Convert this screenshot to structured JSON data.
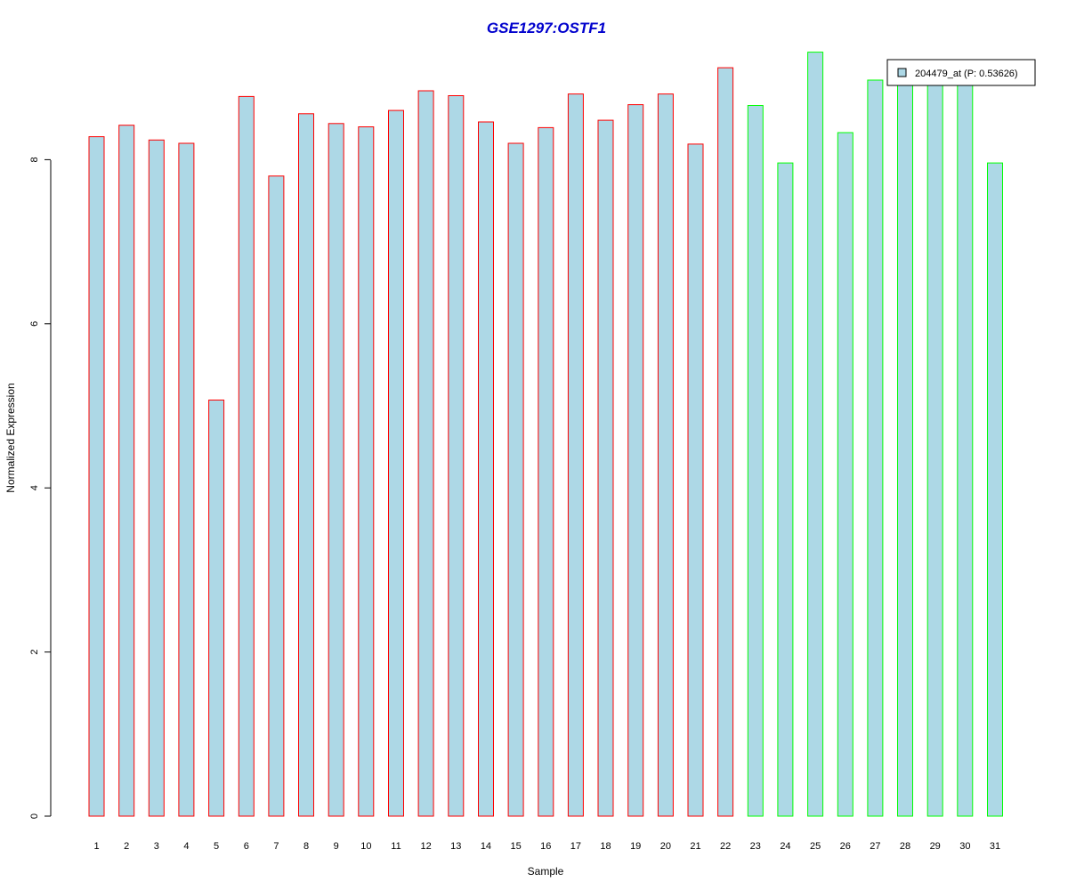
{
  "chart_data": {
    "type": "bar",
    "title": "GSE1297:OSTF1",
    "xlabel": "Sample",
    "ylabel": "Normalized Expression",
    "categories": [
      "1",
      "2",
      "3",
      "4",
      "5",
      "6",
      "7",
      "8",
      "9",
      "10",
      "11",
      "12",
      "13",
      "14",
      "15",
      "16",
      "17",
      "18",
      "19",
      "20",
      "21",
      "22",
      "23",
      "24",
      "25",
      "26",
      "27",
      "28",
      "29",
      "30",
      "31"
    ],
    "series": [
      {
        "name": "204479_at (P: 0.53626)",
        "values": [
          8.28,
          8.42,
          8.24,
          8.2,
          5.07,
          8.77,
          7.8,
          8.56,
          8.44,
          8.4,
          8.6,
          8.84,
          8.78,
          8.46,
          8.2,
          8.39,
          8.8,
          8.48,
          8.67,
          8.8,
          8.19,
          9.12,
          8.66,
          7.96,
          9.31,
          8.33,
          8.97,
          8.95,
          8.95,
          8.95,
          7.96
        ]
      }
    ],
    "groups": [
      "red",
      "red",
      "red",
      "red",
      "red",
      "red",
      "red",
      "red",
      "red",
      "red",
      "red",
      "red",
      "red",
      "red",
      "red",
      "red",
      "red",
      "red",
      "red",
      "red",
      "red",
      "red",
      "green",
      "green",
      "green",
      "green",
      "green",
      "green",
      "green",
      "green",
      "green"
    ],
    "yticks": [
      0,
      2,
      4,
      6,
      8
    ],
    "ylim": [
      0,
      9.31
    ],
    "grid": false,
    "legend_position": "top-right",
    "colors": {
      "bar_fill": "#add8e6",
      "red": "#ff0000",
      "green": "#00ff00",
      "title": "#0000cd",
      "axis": "#000000"
    }
  }
}
